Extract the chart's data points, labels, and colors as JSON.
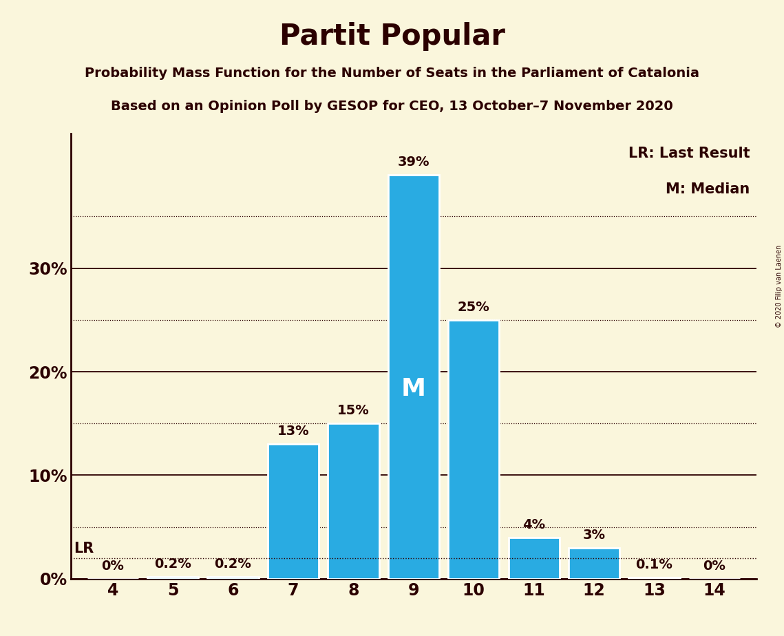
{
  "title": "Partit Popular",
  "subtitle1": "Probability Mass Function for the Number of Seats in the Parliament of Catalonia",
  "subtitle2": "Based on an Opinion Poll by GESOP for CEO, 13 October–7 November 2020",
  "copyright": "© 2020 Filip van Laenen",
  "categories": [
    4,
    5,
    6,
    7,
    8,
    9,
    10,
    11,
    12,
    13,
    14
  ],
  "values": [
    0.0,
    0.2,
    0.2,
    13.0,
    15.0,
    39.0,
    25.0,
    4.0,
    3.0,
    0.1,
    0.0
  ],
  "bar_color": "#29ABE2",
  "bar_edge_color": "#FFFFFF",
  "background_color": "#FAF6DC",
  "text_color": "#2B0000",
  "lr_value": 2.0,
  "lr_label": "LR",
  "median_seat": 9,
  "median_label": "M",
  "legend_lr": "LR: Last Result",
  "legend_m": "M: Median",
  "yticks": [
    0,
    10,
    20,
    30
  ],
  "ytick_labels": [
    "0%",
    "10%",
    "20%",
    "30%"
  ],
  "dotted_lines": [
    5,
    15,
    25,
    35
  ],
  "ylim": [
    0,
    43
  ],
  "bar_labels": [
    "0%",
    "0.2%",
    "0.2%",
    "13%",
    "15%",
    "39%",
    "25%",
    "4%",
    "3%",
    "0.1%",
    "0%"
  ]
}
